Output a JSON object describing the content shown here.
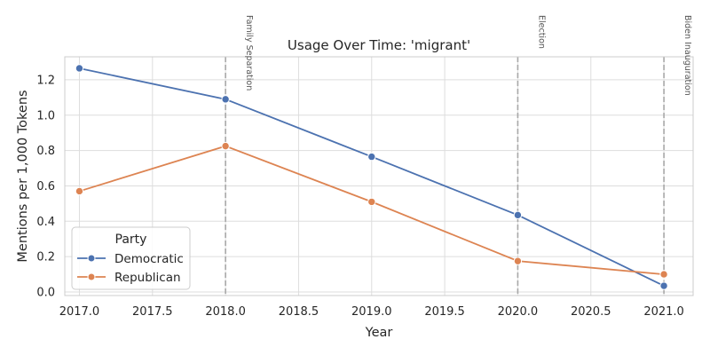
{
  "chart_data": {
    "type": "line",
    "title": "Usage Over Time: 'migrant'",
    "xlabel": "Year",
    "ylabel": "Mentions per 1,000 Tokens",
    "xlim": [
      2016.9,
      2021.2
    ],
    "ylim": [
      -0.02,
      1.33
    ],
    "xticks": [
      2017.0,
      2017.5,
      2018.0,
      2018.5,
      2019.0,
      2019.5,
      2020.0,
      2020.5,
      2021.0
    ],
    "xtick_labels": [
      "2017.0",
      "2017.5",
      "2018.0",
      "2018.5",
      "2019.0",
      "2019.5",
      "2020.0",
      "2020.5",
      "2021.0"
    ],
    "yticks": [
      0.0,
      0.2,
      0.4,
      0.6,
      0.8,
      1.0,
      1.2
    ],
    "ytick_labels": [
      "0.0",
      "0.2",
      "0.4",
      "0.6",
      "0.8",
      "1.0",
      "1.2"
    ],
    "grid": true,
    "legend": {
      "title": "Party",
      "placement": "lower-left"
    },
    "series": [
      {
        "name": "Democratic",
        "color": "#4c72b0",
        "x": [
          2017,
          2018,
          2019,
          2020,
          2021
        ],
        "y": [
          1.265,
          1.09,
          0.765,
          0.435,
          0.035
        ]
      },
      {
        "name": "Republican",
        "color": "#dd8452",
        "x": [
          2017,
          2018,
          2019,
          2020,
          2021
        ],
        "y": [
          0.57,
          0.825,
          0.51,
          0.175,
          0.1
        ]
      }
    ],
    "annotations": [
      {
        "x": 2018,
        "label": "Family Separation"
      },
      {
        "x": 2020,
        "label": "Election"
      },
      {
        "x": 2021,
        "label": "Biden Inauguration"
      }
    ]
  }
}
